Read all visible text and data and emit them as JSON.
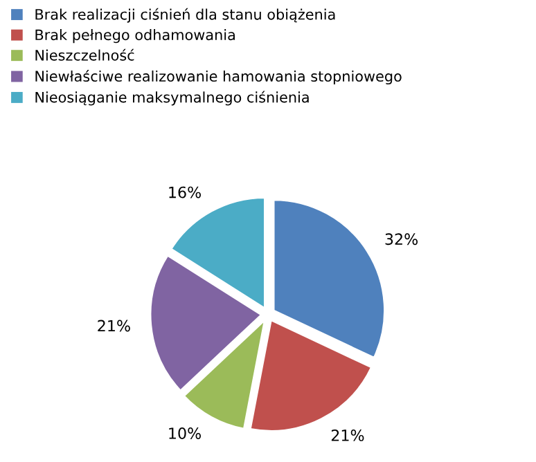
{
  "chart_data": {
    "type": "pie",
    "categories": [
      "Brak realizacji ciśnień dla stanu obiążenia",
      "Brak pełnego odhamowania",
      "Nieszczelność",
      "Niewłaściwe realizowanie hamowania stopniowego",
      "Nieosiąganie maksymalnego ciśnienia"
    ],
    "values": [
      32,
      21,
      10,
      21,
      16
    ],
    "colors": [
      "#4f81bd",
      "#c0504d",
      "#9bbb59",
      "#8064a2",
      "#4bacc6"
    ],
    "value_labels": [
      "32%",
      "21%",
      "10%",
      "21%",
      "16%"
    ],
    "legend": "top"
  }
}
